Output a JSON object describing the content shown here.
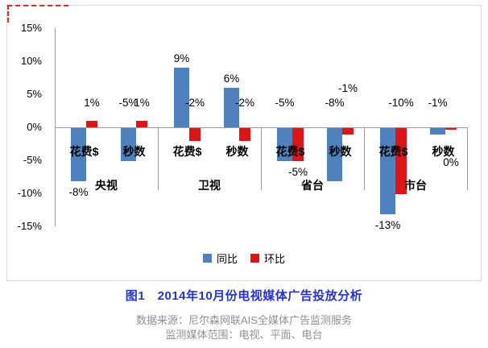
{
  "colors": {
    "tongbi": "#4f81bd",
    "huanbi": "#e01414",
    "axis_line": "#9a9a9a",
    "axis_text": "#000000",
    "data_label": "#000000",
    "title": "#2433cf",
    "subtitle": "#8f8f8f",
    "frame": "#d9d9d9",
    "marquee": "#ff2020"
  },
  "footer": {
    "source_line": "数据来源：尼尔森网联AIS全媒体广告监测服务",
    "scope_line": "监测媒体范围：电视、平面、电台"
  },
  "chart_data": {
    "type": "bar",
    "title": "图1　2014年10月份电视媒体广告投放分析",
    "ylim": [
      -15,
      15
    ],
    "ytick_step": 5,
    "grid": "off",
    "legend_position": "bottom-center",
    "legend": [
      {
        "name": "同比",
        "color": "#4f81bd"
      },
      {
        "name": "环比",
        "color": "#e01414"
      }
    ],
    "yticks": [
      {
        "label": "15%",
        "value": 15
      },
      {
        "label": "10%",
        "value": 10
      },
      {
        "label": "5%",
        "value": 5
      },
      {
        "label": "0%",
        "value": 0
      },
      {
        "label": "-5%",
        "value": -5
      },
      {
        "label": "-10%",
        "value": -10
      },
      {
        "label": "-15%",
        "value": -15
      }
    ],
    "series": [
      "同比",
      "环比"
    ],
    "groups": [
      {
        "name": "央视",
        "clusters": [
          {
            "name": "花费$",
            "bars": [
              {
                "series": "同比",
                "value": -8,
                "label": "-8%",
                "label_pos": "below-bar"
              },
              {
                "series": "环比",
                "value": 1,
                "label": "1%",
                "label_pos": "axis-row"
              }
            ]
          },
          {
            "name": "秒数",
            "bars": [
              {
                "series": "同比",
                "value": -5,
                "label": "-5%",
                "label_pos": "axis-row"
              },
              {
                "series": "环比",
                "value": 1,
                "label": "1%",
                "label_pos": "axis-row"
              }
            ]
          }
        ]
      },
      {
        "name": "卫视",
        "clusters": [
          {
            "name": "花费$",
            "bars": [
              {
                "series": "同比",
                "value": 9,
                "label": "9%",
                "label_pos": "above-bar"
              },
              {
                "series": "环比",
                "value": -2,
                "label": "-2%",
                "label_pos": "axis-row"
              }
            ]
          },
          {
            "name": "秒数",
            "bars": [
              {
                "series": "同比",
                "value": 6,
                "label": "6%",
                "label_pos": "above-bar"
              },
              {
                "series": "环比",
                "value": -2,
                "label": "-2%",
                "label_pos": "axis-row"
              }
            ]
          }
        ]
      },
      {
        "name": "省台",
        "clusters": [
          {
            "name": "花费$",
            "bars": [
              {
                "series": "同比",
                "value": -5,
                "label": "-5%",
                "label_pos": "axis-row"
              },
              {
                "series": "环比",
                "value": -5,
                "label": "-5%",
                "label_pos": "below-bar"
              }
            ]
          },
          {
            "name": "秒数",
            "bars": [
              {
                "series": "同比",
                "value": -8,
                "label": "-8%",
                "label_pos": "axis-row"
              },
              {
                "series": "环比",
                "value": -1,
                "label": "-1%",
                "label_pos": "axis-row-high"
              }
            ]
          }
        ]
      },
      {
        "name": "市台",
        "clusters": [
          {
            "name": "花费$",
            "bars": [
              {
                "series": "同比",
                "value": -13,
                "label": "-13%",
                "label_pos": "below-bar"
              },
              {
                "series": "环比",
                "value": -10,
                "label": "-10%",
                "label_pos": "axis-row"
              }
            ]
          },
          {
            "name": "秒数",
            "bars": [
              {
                "series": "同比",
                "value": -1,
                "label": "-1%",
                "label_pos": "axis-row"
              },
              {
                "series": "环比",
                "value": 0,
                "label": "0%",
                "label_pos": "below-axis"
              }
            ]
          }
        ]
      }
    ]
  }
}
